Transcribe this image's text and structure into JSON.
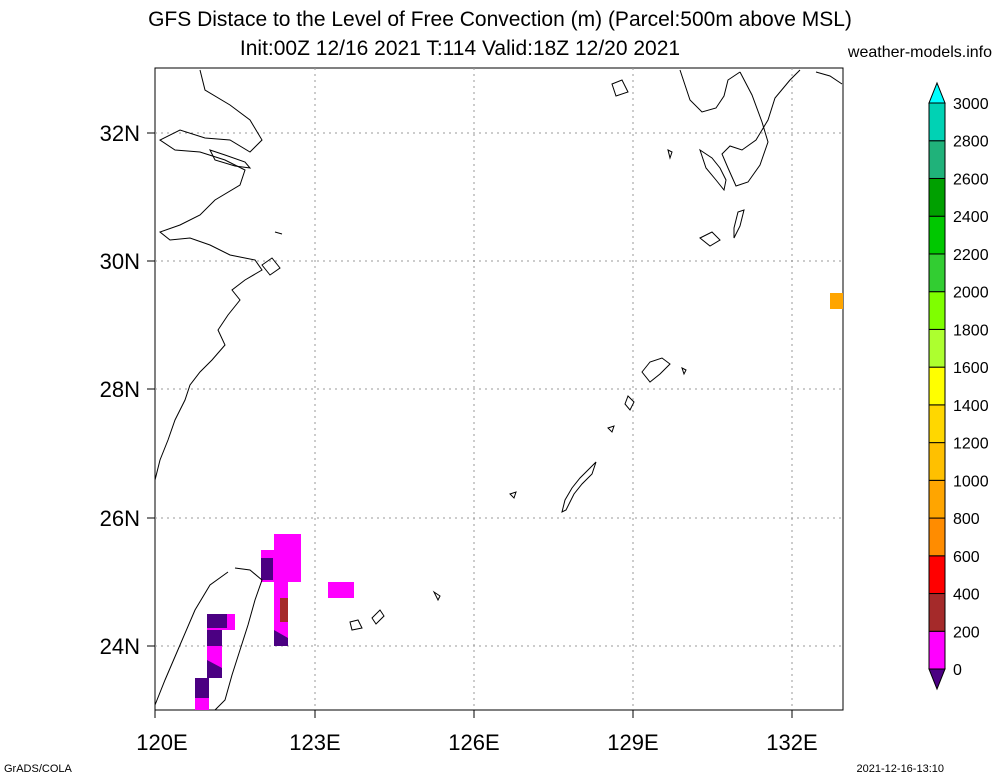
{
  "header": {
    "title_line1": "GFS Distace to the Level of Free Convection (m) (Parcel:500m above MSL)",
    "title_line2": "Init:00Z 12/16 2021 T:114 Valid:18Z 12/20 2021",
    "site": "weather-models.info"
  },
  "footer": {
    "left": "GrADS/COLA",
    "right": "2021-12-16-13:10"
  },
  "map": {
    "lon_labels": [
      "120E",
      "123E",
      "126E",
      "129E",
      "132E"
    ],
    "lat_labels": [
      "24N",
      "26N",
      "28N",
      "30N",
      "32N"
    ]
  },
  "colorbar": {
    "labels": [
      "0",
      "200",
      "400",
      "600",
      "800",
      "1000",
      "1200",
      "1400",
      "1600",
      "1800",
      "2000",
      "2200",
      "2400",
      "2600",
      "2800",
      "3000"
    ],
    "colors": [
      "#4b0082",
      "#ff00ff",
      "#a52a2a",
      "#ff0000",
      "#ff8c00",
      "#ffa500",
      "#ffc000",
      "#ffd700",
      "#ffff00",
      "#adff2f",
      "#7fff00",
      "#32cd32",
      "#00c800",
      "#00a000",
      "#20b27a",
      "#00d2b4",
      "#00ffff"
    ]
  }
}
